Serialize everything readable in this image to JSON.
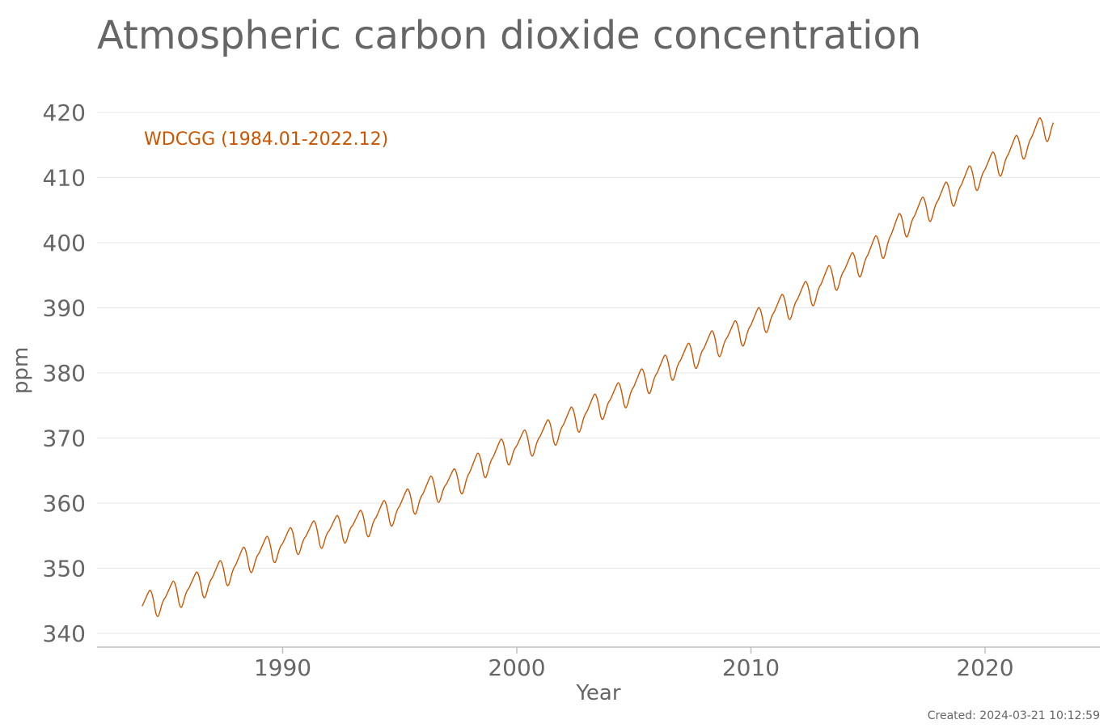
{
  "chart_data": {
    "type": "line",
    "title": "Atmospheric carbon dioxide concentration",
    "xlabel": "Year",
    "ylabel": "ppm",
    "xlim": [
      1982,
      2025
    ],
    "ylim": [
      338,
      422
    ],
    "x_ticks": [
      1990,
      2000,
      2010,
      2020
    ],
    "y_ticks": [
      340,
      350,
      360,
      370,
      380,
      390,
      400,
      410,
      420
    ],
    "grid": "horizontal",
    "legend_placement": "top-left",
    "series": [
      {
        "name": "WDCGG (1984.01-2022.12)",
        "color": "#cc5500",
        "x_start": "1984-01",
        "x_end": "2022-12",
        "annual_means": [
          344.6,
          346.0,
          347.4,
          349.2,
          351.3,
          352.9,
          354.2,
          355.2,
          356.0,
          356.8,
          358.4,
          360.2,
          362.2,
          363.2,
          365.8,
          367.9,
          369.2,
          370.8,
          372.8,
          374.8,
          376.5,
          378.7,
          380.8,
          382.6,
          384.5,
          386.0,
          388.1,
          390.1,
          392.1,
          394.6,
          396.5,
          399.2,
          402.7,
          405.1,
          407.4,
          409.9,
          412.0,
          414.6,
          417.3
        ],
        "seasonal_amplitude": 2.2
      }
    ],
    "colors": {
      "text": "#666666",
      "grid": "#e6e6e6",
      "axis": "#bfbfbf"
    }
  },
  "footer": {
    "created": "Created: 2024-03-21 10:12:59"
  }
}
